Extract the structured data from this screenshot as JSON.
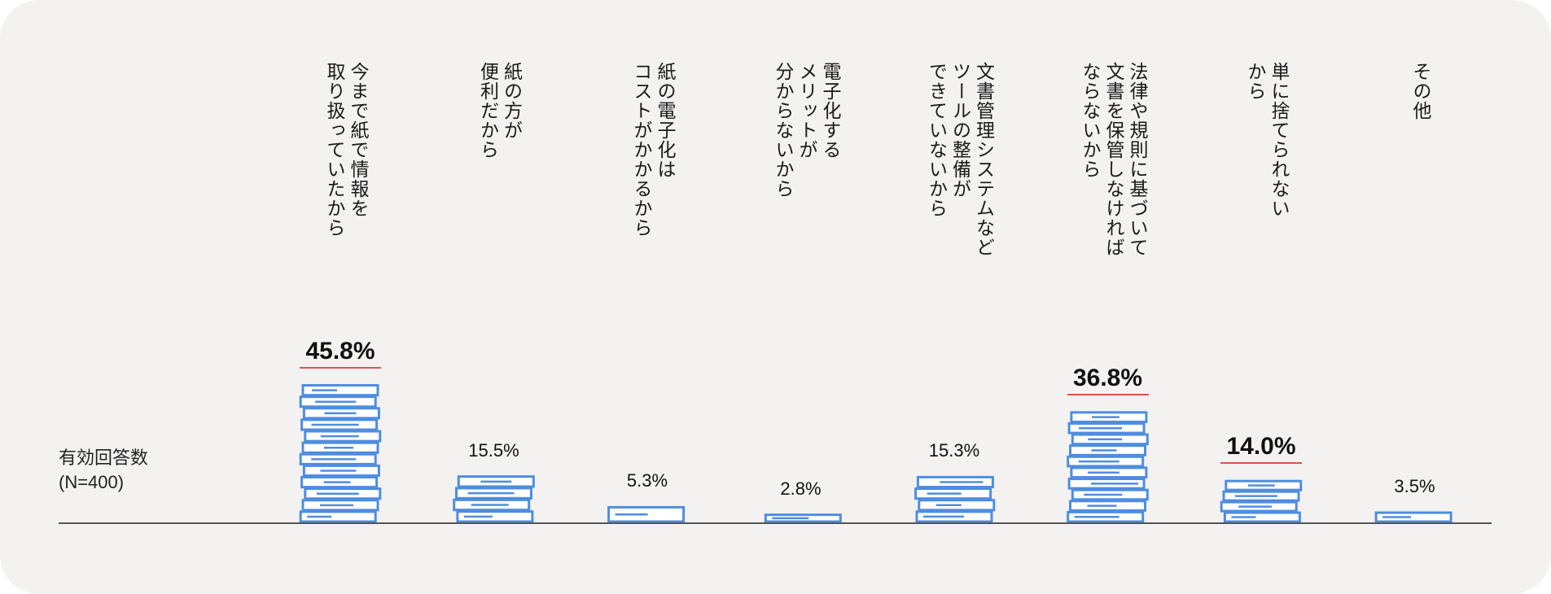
{
  "n_label": {
    "line1": "有効回答数",
    "line2": "(N=400)"
  },
  "colors": {
    "bar_stroke": "#4f8de0",
    "highlight_underline": "#d9534f",
    "panel_bg": "#f3f2f1"
  },
  "chart_data": {
    "type": "bar",
    "categories": [
      "今まで紙で情報を\n取り扱っていたから",
      "紙の方が\n便利だから",
      "紙の電子化は\nコストがかかるから",
      "電子化する\nメリットが\n分からないから",
      "文書管理システムなど\nツールの整備が\nできていないから",
      "法律や規則に基づいて\n文書を保管しなければ\nならないから",
      "単に捨てられない\nから",
      "その他"
    ],
    "values": [
      45.8,
      15.5,
      5.3,
      2.8,
      15.3,
      36.8,
      14.0,
      3.5
    ],
    "value_labels": [
      "45.8%",
      "15.5%",
      "5.3%",
      "2.8%",
      "15.3%",
      "36.8%",
      "14.0%",
      "3.5%"
    ],
    "highlighted": [
      true,
      false,
      false,
      false,
      false,
      true,
      true,
      false
    ],
    "unit": "%",
    "ylim": [
      0,
      50
    ],
    "legend": "none",
    "grid": false
  }
}
